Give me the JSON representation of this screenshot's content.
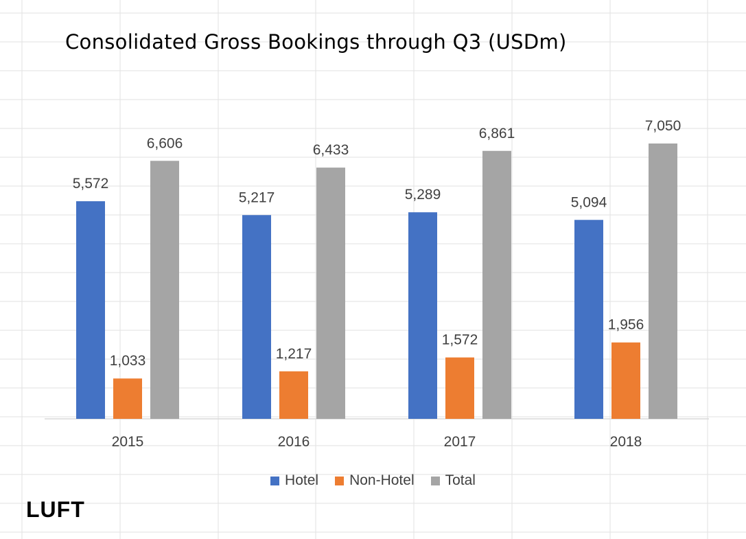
{
  "chart_data": {
    "type": "bar",
    "title": "Consolidated Gross Bookings through Q3 (USDm)",
    "categories": [
      "2015",
      "2016",
      "2017",
      "2018"
    ],
    "series": [
      {
        "name": "Hotel",
        "color": "#4472C4",
        "values": [
          5572,
          5217,
          5289,
          5094
        ]
      },
      {
        "name": "Non-Hotel",
        "color": "#ED7D31",
        "values": [
          1033,
          1217,
          1572,
          1956
        ]
      },
      {
        "name": "Total",
        "color": "#A5A5A5",
        "values": [
          6606,
          6433,
          6861,
          7050
        ]
      }
    ],
    "data_labels": [
      [
        "5,572",
        "5,217",
        "5,289",
        "5,094"
      ],
      [
        "1,033",
        "1,217",
        "1,572",
        "1,956"
      ],
      [
        "6,606",
        "6,433",
        "6,861",
        "7,050"
      ]
    ],
    "ylim": [
      0,
      7050
    ],
    "xlabel": "",
    "ylabel": "",
    "grid": false,
    "legend_position": "bottom"
  },
  "branding": {
    "logo_text": "LUFT"
  }
}
